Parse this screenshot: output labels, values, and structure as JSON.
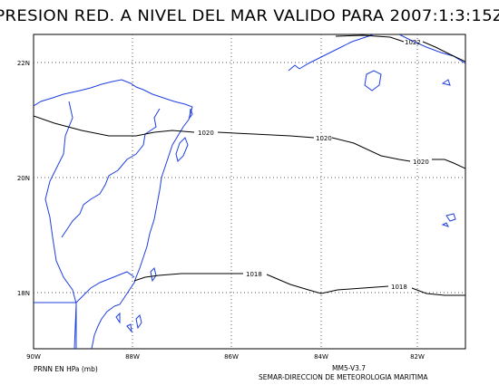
{
  "title": "PRESION RED. A NIVEL DEL MAR VALIDO PARA 2007:1:3:15Z",
  "map": {
    "lon_ticks": [
      "90W",
      "88W",
      "86W",
      "84W",
      "82W"
    ],
    "lat_ticks": [
      "22N",
      "20N",
      "18N"
    ],
    "isobar_labels": [
      "1022",
      "1020",
      "1020",
      "1020",
      "1018",
      "1018"
    ]
  },
  "footer": {
    "left": "PRNN EN HPa (mb)",
    "version": "MM5-V3.7",
    "agency": "SEMAR-DIRECCION DE METEOROLOGIA MARITIMA"
  },
  "colors": {
    "coast": "#1f3fe0",
    "isobar": "#000000",
    "grid": "#444444"
  }
}
